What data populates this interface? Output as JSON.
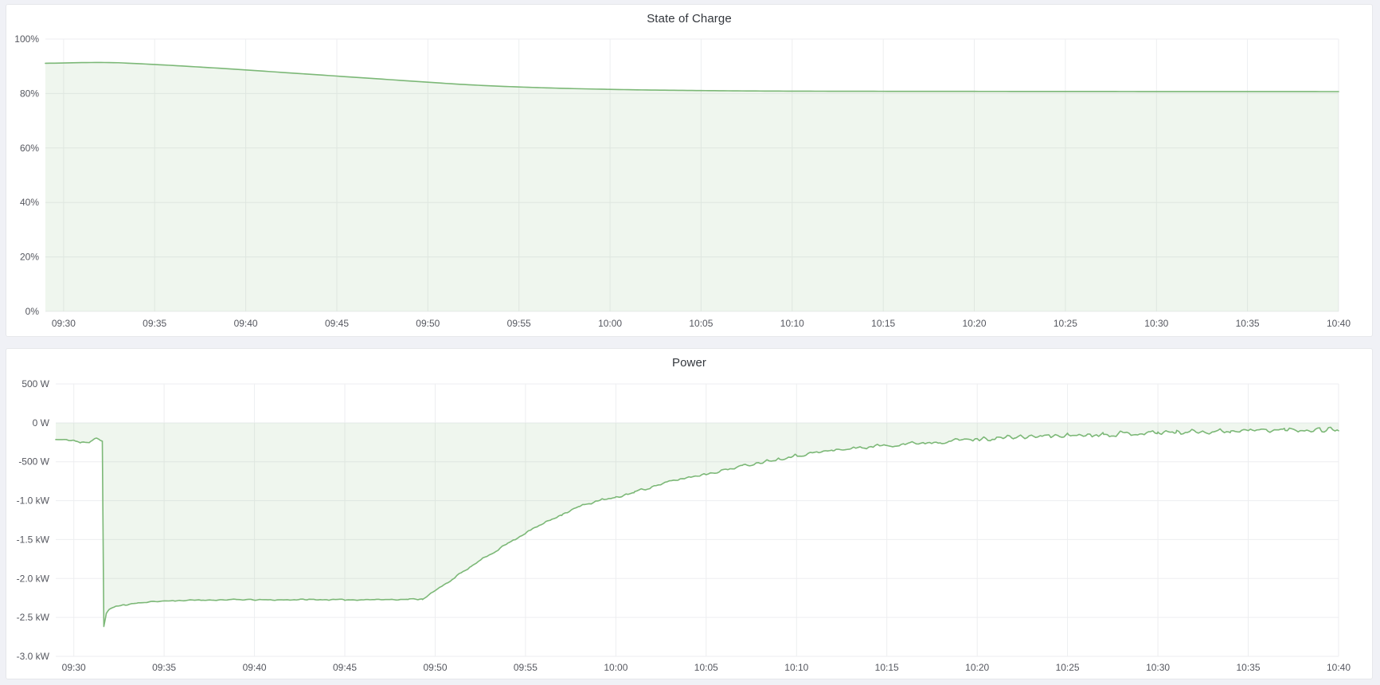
{
  "page": {
    "background": "#F0F1F6",
    "panel_background": "#FFFFFF",
    "panel_border": "#E6E7EB",
    "grid_color": "#EDEEF0",
    "axis_text_color": "#55575F",
    "title_color": "#33373D",
    "accent_green": "#7CB877"
  },
  "panels": [
    {
      "title": "State of Charge"
    },
    {
      "title": "Power"
    }
  ],
  "chart_data": [
    {
      "type": "area",
      "title": "State of Charge",
      "unit": "percent",
      "x_range_min": [
        -1,
        70
      ],
      "x_start_time": "09:29",
      "ylim": [
        0,
        100
      ],
      "baseline_value": 0,
      "grid": true,
      "legend": "none",
      "sample_step_min": 0.25,
      "noise_seed": 3,
      "noise_amp_anchors": [
        [
          -1,
          0
        ],
        [
          70,
          0
        ]
      ],
      "x_ticks": [
        {
          "t": 0,
          "label": "09:30"
        },
        {
          "t": 5,
          "label": "09:35"
        },
        {
          "t": 10,
          "label": "09:40"
        },
        {
          "t": 15,
          "label": "09:45"
        },
        {
          "t": 20,
          "label": "09:50"
        },
        {
          "t": 25,
          "label": "09:55"
        },
        {
          "t": 30,
          "label": "10:00"
        },
        {
          "t": 35,
          "label": "10:05"
        },
        {
          "t": 40,
          "label": "10:10"
        },
        {
          "t": 45,
          "label": "10:15"
        },
        {
          "t": 50,
          "label": "10:20"
        },
        {
          "t": 55,
          "label": "10:25"
        },
        {
          "t": 60,
          "label": "10:30"
        },
        {
          "t": 65,
          "label": "10:35"
        },
        {
          "t": 70,
          "label": "10:40"
        }
      ],
      "y_ticks": [
        {
          "value": 100,
          "label": "100%"
        },
        {
          "value": 80,
          "label": "80%"
        },
        {
          "value": 60,
          "label": "60%"
        },
        {
          "value": 40,
          "label": "40%"
        },
        {
          "value": 20,
          "label": "20%"
        },
        {
          "value": 0,
          "label": "0%"
        }
      ],
      "series": [
        {
          "name": "State of Charge",
          "color": "#7CB877",
          "fill": "rgba(124,184,119,0.12)",
          "points": [
            [
              -1,
              91.1
            ],
            [
              0,
              91.2
            ],
            [
              1,
              91.35
            ],
            [
              2,
              91.4
            ],
            [
              3,
              91.3
            ],
            [
              4,
              91.0
            ],
            [
              5,
              90.65
            ],
            [
              6,
              90.3
            ],
            [
              7,
              89.9
            ],
            [
              8,
              89.5
            ],
            [
              9,
              89.1
            ],
            [
              10,
              88.65
            ],
            [
              11,
              88.2
            ],
            [
              12,
              87.75
            ],
            [
              13,
              87.3
            ],
            [
              14,
              86.85
            ],
            [
              15,
              86.4
            ],
            [
              16,
              85.95
            ],
            [
              17,
              85.5
            ],
            [
              18,
              85.05
            ],
            [
              19,
              84.6
            ],
            [
              20,
              84.15
            ],
            [
              21,
              83.7
            ],
            [
              22,
              83.3
            ],
            [
              23,
              82.95
            ],
            [
              24,
              82.65
            ],
            [
              25,
              82.4
            ],
            [
              26,
              82.18
            ],
            [
              27,
              81.98
            ],
            [
              28,
              81.8
            ],
            [
              29,
              81.65
            ],
            [
              30,
              81.52
            ],
            [
              31,
              81.4
            ],
            [
              32,
              81.3
            ],
            [
              33,
              81.22
            ],
            [
              34,
              81.15
            ],
            [
              35,
              81.08
            ],
            [
              36,
              81.02
            ],
            [
              37,
              80.97
            ],
            [
              38,
              80.93
            ],
            [
              39,
              80.9
            ],
            [
              40,
              80.87
            ],
            [
              42,
              80.84
            ],
            [
              44,
              80.82
            ],
            [
              46,
              80.8
            ],
            [
              48,
              80.79
            ],
            [
              50,
              80.78
            ],
            [
              52,
              80.77
            ],
            [
              54,
              80.76
            ],
            [
              56,
              80.75
            ],
            [
              58,
              80.74
            ],
            [
              60,
              80.73
            ],
            [
              62,
              80.72
            ],
            [
              64,
              80.72
            ],
            [
              66,
              80.71
            ],
            [
              68,
              80.71
            ],
            [
              70,
              80.7
            ]
          ]
        }
      ]
    },
    {
      "type": "area",
      "title": "Power",
      "unit": "watt",
      "x_range_min": [
        -1,
        70
      ],
      "x_start_time": "09:29",
      "ylim": [
        -3000,
        500
      ],
      "baseline_value": 0,
      "grid": true,
      "legend": "none",
      "sample_step_min": 0.12,
      "noise_seed": 11,
      "noise_amp_anchors": [
        [
          -1,
          14
        ],
        [
          1.5,
          10
        ],
        [
          2,
          8
        ],
        [
          18,
          9
        ],
        [
          20,
          14
        ],
        [
          24,
          16
        ],
        [
          30,
          20
        ],
        [
          38,
          24
        ],
        [
          45,
          30
        ],
        [
          52,
          34
        ],
        [
          60,
          40
        ],
        [
          70,
          42
        ]
      ],
      "x_ticks": [
        {
          "t": 0,
          "label": "09:30"
        },
        {
          "t": 5,
          "label": "09:35"
        },
        {
          "t": 10,
          "label": "09:40"
        },
        {
          "t": 15,
          "label": "09:45"
        },
        {
          "t": 20,
          "label": "09:50"
        },
        {
          "t": 25,
          "label": "09:55"
        },
        {
          "t": 30,
          "label": "10:00"
        },
        {
          "t": 35,
          "label": "10:05"
        },
        {
          "t": 40,
          "label": "10:10"
        },
        {
          "t": 45,
          "label": "10:15"
        },
        {
          "t": 50,
          "label": "10:20"
        },
        {
          "t": 55,
          "label": "10:25"
        },
        {
          "t": 60,
          "label": "10:30"
        },
        {
          "t": 65,
          "label": "10:35"
        },
        {
          "t": 70,
          "label": "10:40"
        }
      ],
      "y_ticks": [
        {
          "value": 500,
          "label": "500 W"
        },
        {
          "value": 0,
          "label": "0 W"
        },
        {
          "value": -500,
          "label": "-500 W"
        },
        {
          "value": -1000,
          "label": "-1.0 kW"
        },
        {
          "value": -1500,
          "label": "-1.5 kW"
        },
        {
          "value": -2000,
          "label": "-2.0 kW"
        },
        {
          "value": -2500,
          "label": "-2.5 kW"
        },
        {
          "value": -3000,
          "label": "-3.0 kW"
        }
      ],
      "series": [
        {
          "name": "Power",
          "color": "#7CB877",
          "fill": "rgba(124,184,119,0.12)",
          "points": [
            [
              -1,
              -215
            ],
            [
              0,
              -225
            ],
            [
              0.35,
              -258
            ],
            [
              0.6,
              -242
            ],
            [
              0.85,
              -252
            ],
            [
              1.1,
              -210
            ],
            [
              1.25,
              -196
            ],
            [
              1.45,
              -228
            ],
            [
              1.58,
              -235
            ],
            [
              1.66,
              -2610
            ],
            [
              1.8,
              -2455
            ],
            [
              1.95,
              -2395
            ],
            [
              2.3,
              -2360
            ],
            [
              2.8,
              -2340
            ],
            [
              3.5,
              -2315
            ],
            [
              4.5,
              -2295
            ],
            [
              5.5,
              -2285
            ],
            [
              7,
              -2278
            ],
            [
              9,
              -2272
            ],
            [
              11,
              -2276
            ],
            [
              13,
              -2270
            ],
            [
              15,
              -2274
            ],
            [
              17,
              -2270
            ],
            [
              18.5,
              -2268
            ],
            [
              19.3,
              -2262
            ],
            [
              20,
              -2160
            ],
            [
              21,
              -2000
            ],
            [
              22,
              -1845
            ],
            [
              23,
              -1695
            ],
            [
              24,
              -1550
            ],
            [
              25,
              -1415
            ],
            [
              26,
              -1290
            ],
            [
              27,
              -1175
            ],
            [
              28,
              -1075
            ],
            [
              29,
              -1000
            ],
            [
              30,
              -965
            ],
            [
              31,
              -890
            ],
            [
              32,
              -820
            ],
            [
              33,
              -755
            ],
            [
              34,
              -700
            ],
            [
              35,
              -655
            ],
            [
              36,
              -605
            ],
            [
              37,
              -555
            ],
            [
              38,
              -505
            ],
            [
              39,
              -460
            ],
            [
              40,
              -420
            ],
            [
              41,
              -385
            ],
            [
              42,
              -355
            ],
            [
              43,
              -330
            ],
            [
              44,
              -308
            ],
            [
              45,
              -288
            ],
            [
              46,
              -270
            ],
            [
              47,
              -254
            ],
            [
              48,
              -240
            ],
            [
              49,
              -222
            ],
            [
              50,
              -210
            ],
            [
              51,
              -198
            ],
            [
              52,
              -187
            ],
            [
              53,
              -177
            ],
            [
              54,
              -168
            ],
            [
              55,
              -159
            ],
            [
              56,
              -151
            ],
            [
              57,
              -144
            ],
            [
              58,
              -137
            ],
            [
              59,
              -131
            ],
            [
              60,
              -125
            ],
            [
              61,
              -119
            ],
            [
              62,
              -113
            ],
            [
              63,
              -108
            ],
            [
              64,
              -103
            ],
            [
              65,
              -99
            ],
            [
              66,
              -95
            ],
            [
              67,
              -91
            ],
            [
              68,
              -88
            ],
            [
              69,
              -85
            ],
            [
              70,
              -83
            ]
          ]
        }
      ]
    }
  ]
}
